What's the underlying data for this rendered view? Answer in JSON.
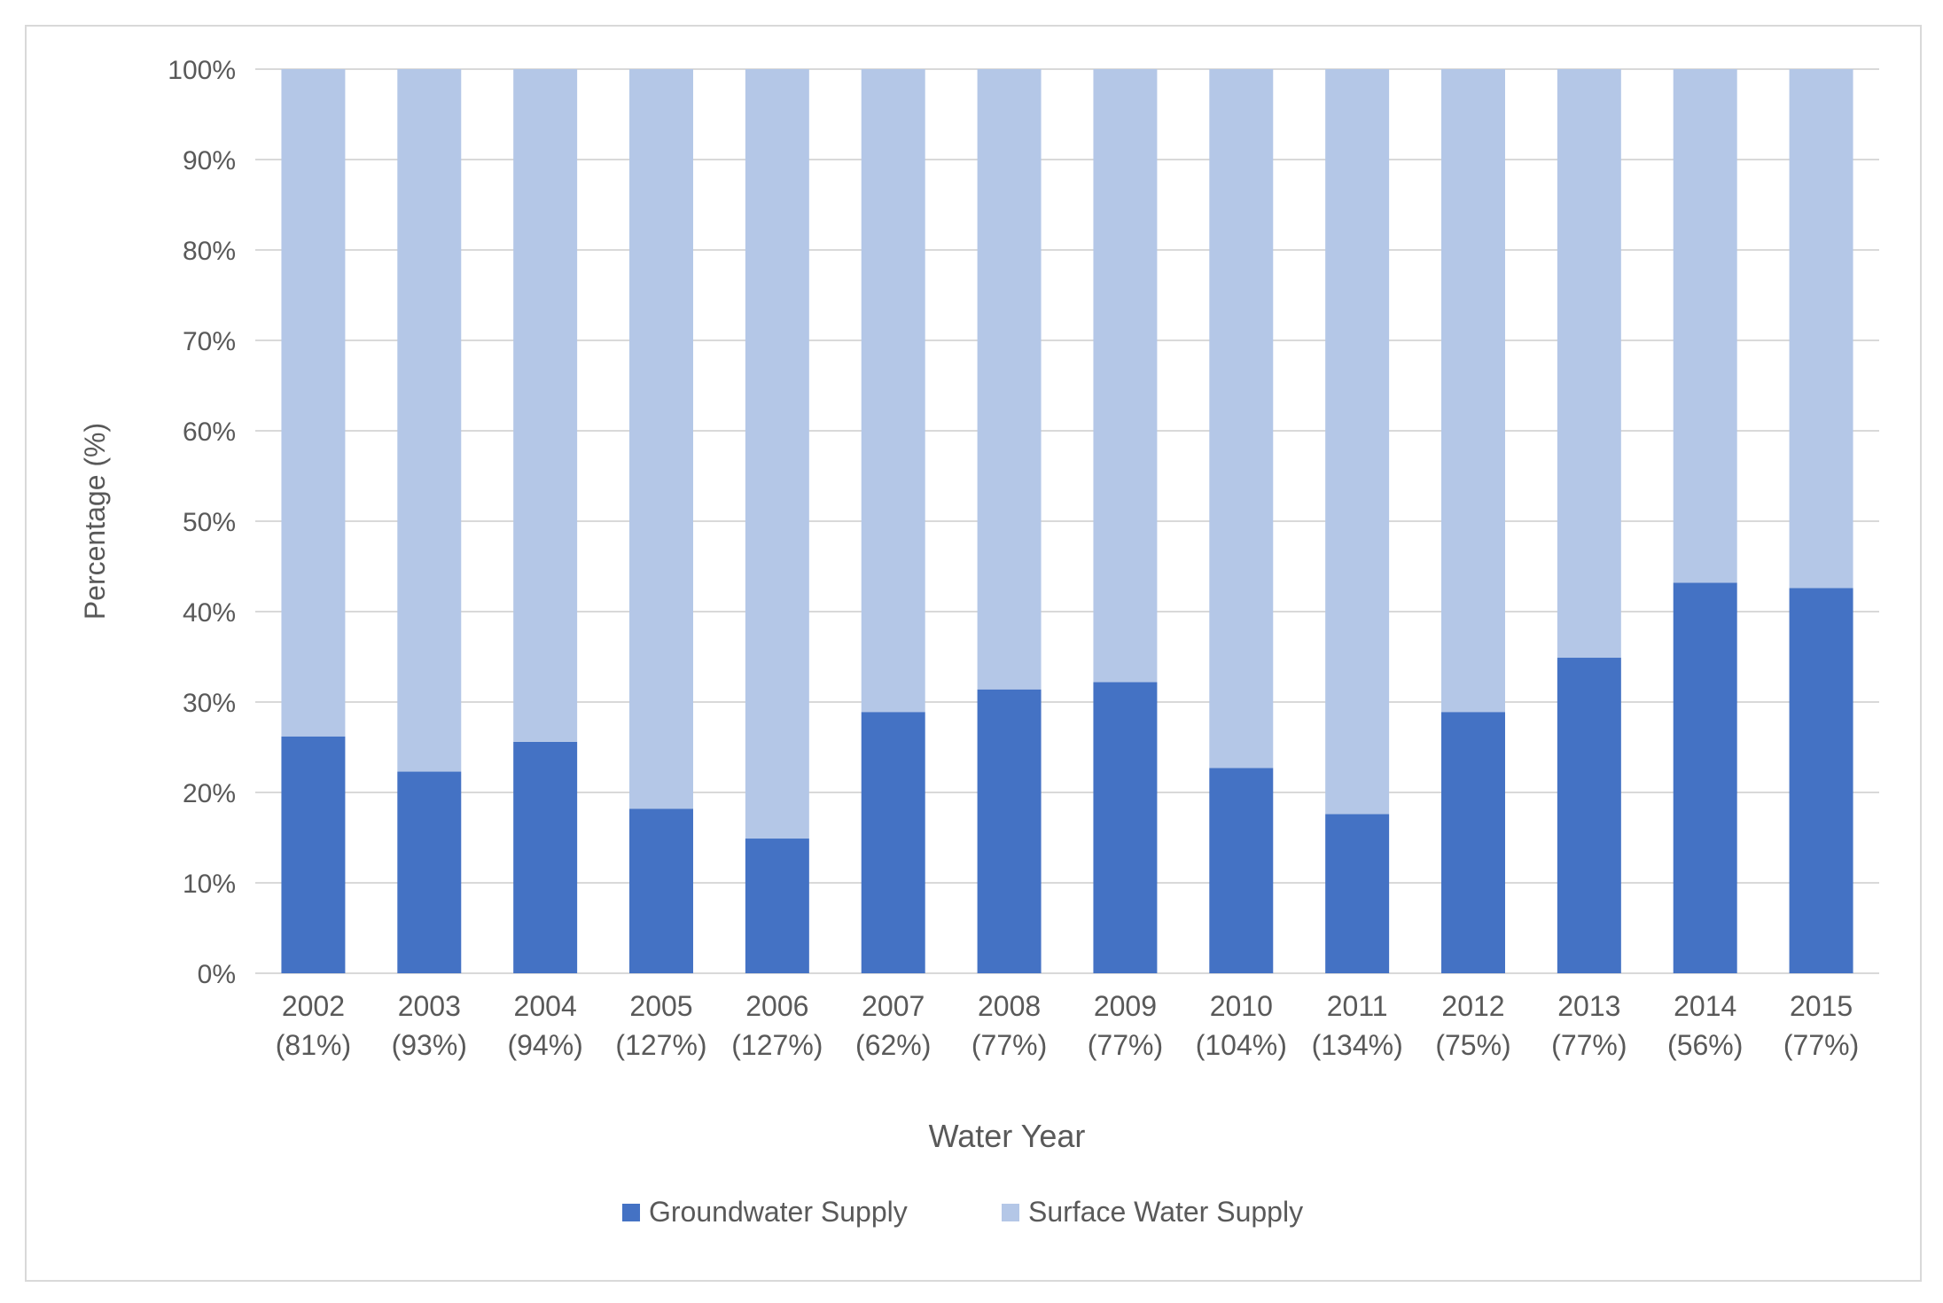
{
  "chart_data": {
    "type": "bar",
    "stacked": true,
    "percent_stacked": true,
    "title": "",
    "xlabel": "Water Year",
    "ylabel": "Percentage (%)",
    "ylim": [
      0,
      100
    ],
    "yticks": [
      "0%",
      "10%",
      "20%",
      "30%",
      "40%",
      "50%",
      "60%",
      "70%",
      "80%",
      "90%",
      "100%"
    ],
    "ytick_values": [
      0,
      10,
      20,
      30,
      40,
      50,
      60,
      70,
      80,
      90,
      100
    ],
    "categories": [
      "2002",
      "2003",
      "2004",
      "2005",
      "2006",
      "2007",
      "2008",
      "2009",
      "2010",
      "2011",
      "2012",
      "2013",
      "2014",
      "2015"
    ],
    "category_sublabels": [
      "(81%)",
      "(93%)",
      "(94%)",
      "(127%)",
      "(127%)",
      "(62%)",
      "(77%)",
      "(77%)",
      "(104%)",
      "(134%)",
      "(75%)",
      "(77%)",
      "(56%)",
      "(77%)"
    ],
    "series": [
      {
        "name": "Groundwater Supply",
        "color": "#4472c4",
        "values": [
          26.2,
          22.3,
          25.6,
          18.2,
          14.9,
          28.9,
          31.4,
          32.2,
          22.7,
          17.6,
          28.9,
          34.9,
          43.2,
          42.6
        ]
      },
      {
        "name": "Surface Water Supply",
        "color": "#b4c7e7",
        "values": [
          73.8,
          77.7,
          74.4,
          81.8,
          85.1,
          71.1,
          68.6,
          67.8,
          77.3,
          82.4,
          71.1,
          65.1,
          56.8,
          57.4
        ]
      }
    ],
    "legend_position": "bottom",
    "grid": true,
    "gridline_color": "#d9d9d9"
  }
}
